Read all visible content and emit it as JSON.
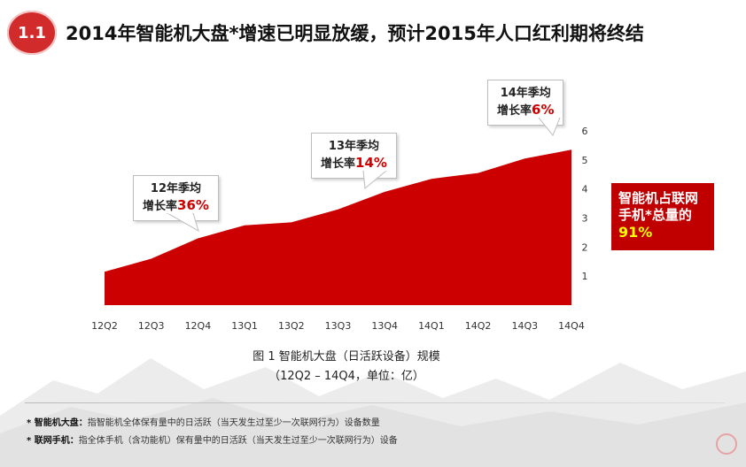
{
  "header": {
    "section_number": "1.1",
    "title": "2014年智能机大盘*增速已明显放缓，预计2015年人口红利期将终结"
  },
  "callouts": [
    {
      "line1": "12年季均",
      "prefix": "增长率",
      "value": "36%"
    },
    {
      "line1": "13年季均",
      "prefix": "增长率",
      "value": "14%"
    },
    {
      "line1": "14年季均",
      "prefix": "增长率",
      "value": "6%"
    }
  ],
  "side_box": {
    "line1": "智能机占联网",
    "line2": "手机*总量的",
    "value": "91%"
  },
  "caption": {
    "line1": "图 1 智能机大盘（日活跃设备）规模",
    "line2": "（12Q2 – 14Q4，单位：亿）"
  },
  "footnotes": [
    {
      "term": "* 智能机大盘：",
      "text": "指智能机全体保有量中的日活跃（当天发生过至少一次联网行为）设备数量"
    },
    {
      "term": "* 联网手机：",
      "text": "指全体手机（含功能机）保有量中的日活跃（当天发生过至少一次联网行为）设备"
    }
  ],
  "colors": {
    "accent": "#c00000",
    "area_fill": "#cc0000",
    "badge": "#d22b2b",
    "highlight": "#ffff00"
  },
  "chart_data": {
    "type": "area",
    "categories": [
      "12Q2",
      "12Q3",
      "12Q4",
      "13Q1",
      "13Q2",
      "13Q3",
      "13Q4",
      "14Q1",
      "14Q2",
      "14Q3",
      "14Q4"
    ],
    "series": [
      {
        "values": [
          1.15,
          1.6,
          2.3,
          2.75,
          2.85,
          3.3,
          3.9,
          4.35,
          4.55,
          5.05,
          5.35
        ]
      }
    ],
    "yticks": [
      "1",
      "2",
      "3",
      "4",
      "5",
      "6"
    ],
    "ylim": [
      0,
      6
    ],
    "title": "",
    "xlabel": "",
    "ylabel": "",
    "grid": false,
    "legend": false
  }
}
